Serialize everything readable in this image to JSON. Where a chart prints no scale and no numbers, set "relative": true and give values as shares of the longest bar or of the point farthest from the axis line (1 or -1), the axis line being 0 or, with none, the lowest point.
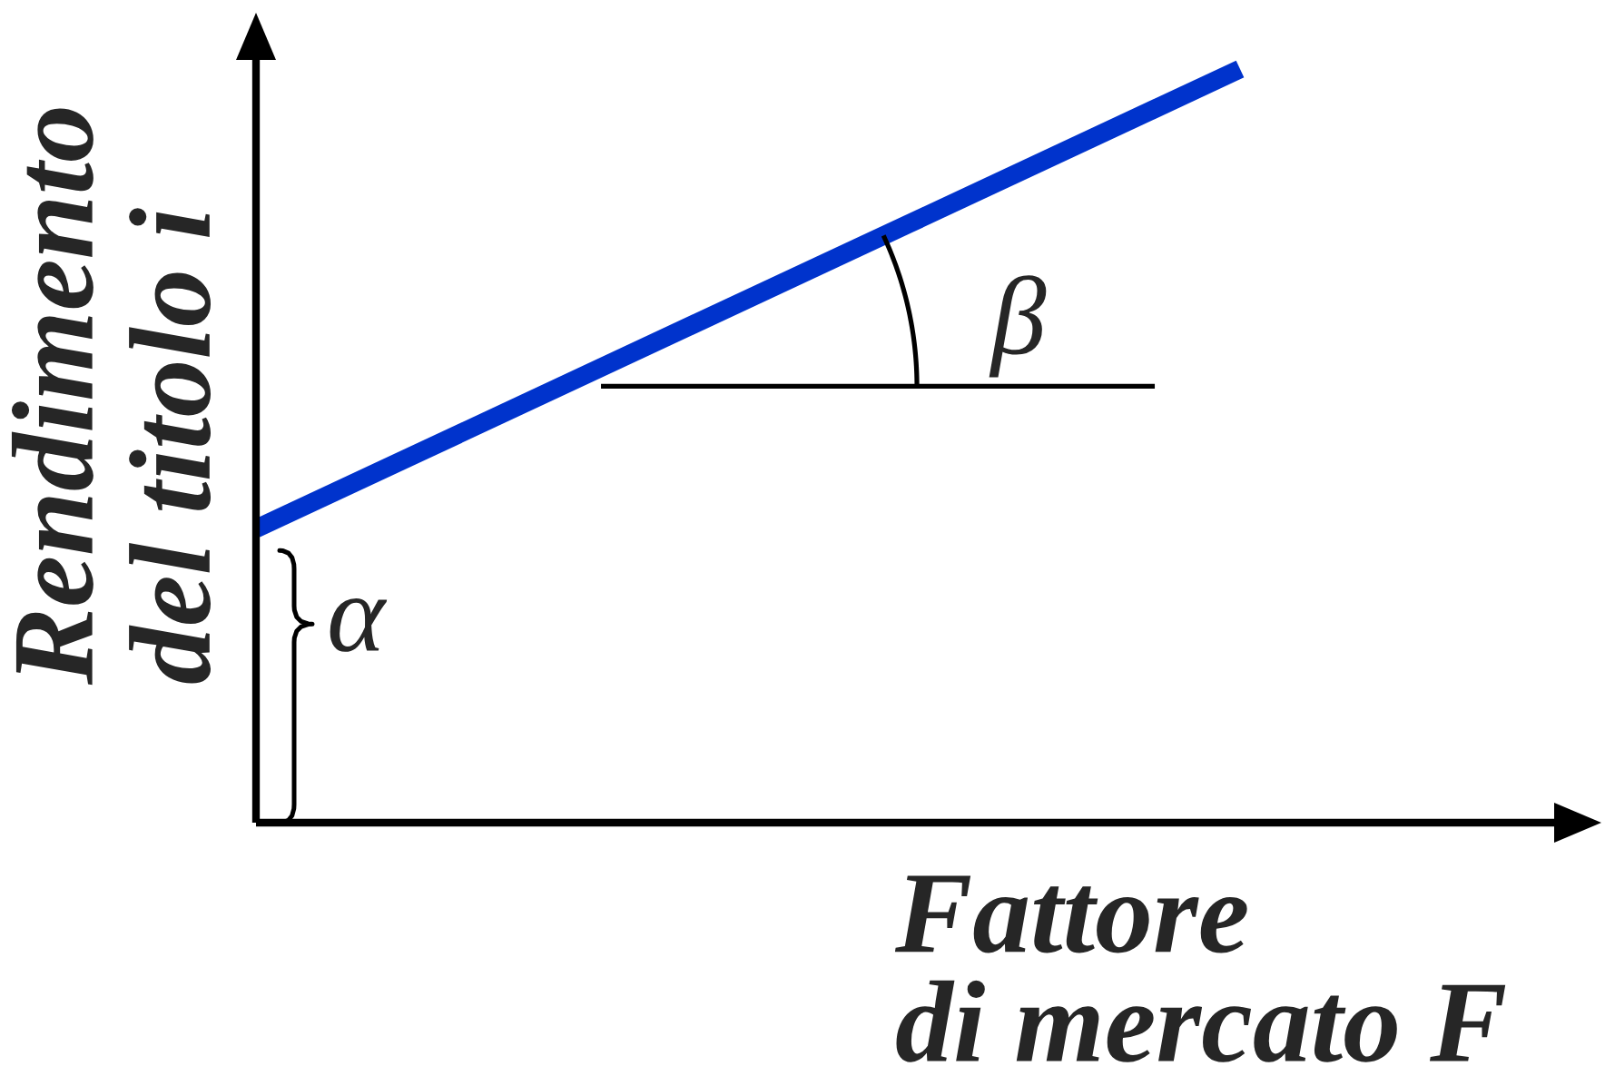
{
  "chart_data": {
    "type": "line",
    "relative": true,
    "categories": [
      null,
      null
    ],
    "series": [
      {
        "color": "#0033cc",
        "values": [
          0.39,
          1
        ]
      }
    ],
    "xlabel": "Fattore\ndi mercato F",
    "ylabel": "Rendimento\ndel titolo i",
    "annotations": [
      "α",
      "β"
    ]
  }
}
